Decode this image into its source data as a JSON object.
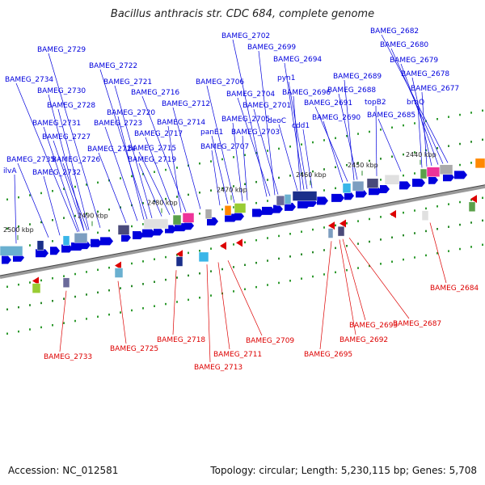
{
  "title": "Bacillus anthracis str. CDC 684, complete genome",
  "footer": {
    "accession": "Accession: NC_012581",
    "stats": "Topology: circular; Length: 5,230,115 bp; Genes: 5,708"
  },
  "colors": {
    "forward": "#0000dd",
    "reverse": "#dd0000",
    "backbone": "#888888"
  },
  "scale": {
    "ticks": [
      {
        "label": "2440 kbp"
      },
      {
        "label": "2450 kbp"
      },
      {
        "label": "2460 kbp"
      },
      {
        "label": "2470 kbp"
      },
      {
        "label": "2480 kbp"
      },
      {
        "label": "2490 kbp"
      },
      {
        "label": "2500 kbp"
      }
    ]
  },
  "genes_forward": [
    "BAMEG_2682",
    "BAMEG_2680",
    "BAMEG_2679",
    "BAMEG_2678",
    "BAMEG_2677",
    "brnQ",
    "BAMEG_2685",
    "topB2",
    "BAMEG_2688",
    "BAMEG_2689",
    "BAMEG_2691",
    "BAMEG_2690",
    "pyn1",
    "BAMEG_2694",
    "BAMEG_2696",
    "cdd1",
    "BAMEG_2702",
    "BAMEG_2699",
    "deoC",
    "BAMEG_2701",
    "BAMEG_2704",
    "BAMEG_2706",
    "BAMEG_2705",
    "BAMEG_2703",
    "panE1",
    "BAMEG_2707",
    "BAMEG_2712",
    "BAMEG_2716",
    "BAMEG_2714",
    "BAMEG_2717",
    "BAMEG_2715",
    "BAMEG_2721",
    "BAMEG_2722",
    "BAMEG_2720",
    "BAMEG_2723",
    "BAMEG_2724",
    "BAMEG_2719",
    "BAMEG_2729",
    "BAMEG_2734",
    "BAMEG_2730",
    "BAMEG_2728",
    "BAMEG_2731",
    "BAMEG_2727",
    "BAMEG_2726",
    "BAMEG_2735",
    "BAMEG_2732",
    "ilvA"
  ],
  "genes_reverse": [
    "BAMEG_2684",
    "BAMEG_2687",
    "BAMEG_2693",
    "BAMEG_2692",
    "BAMEG_2695",
    "BAMEG_2709",
    "BAMEG_2711",
    "BAMEG_2713",
    "BAMEG_2718",
    "BAMEG_2725",
    "BAMEG_2733"
  ]
}
